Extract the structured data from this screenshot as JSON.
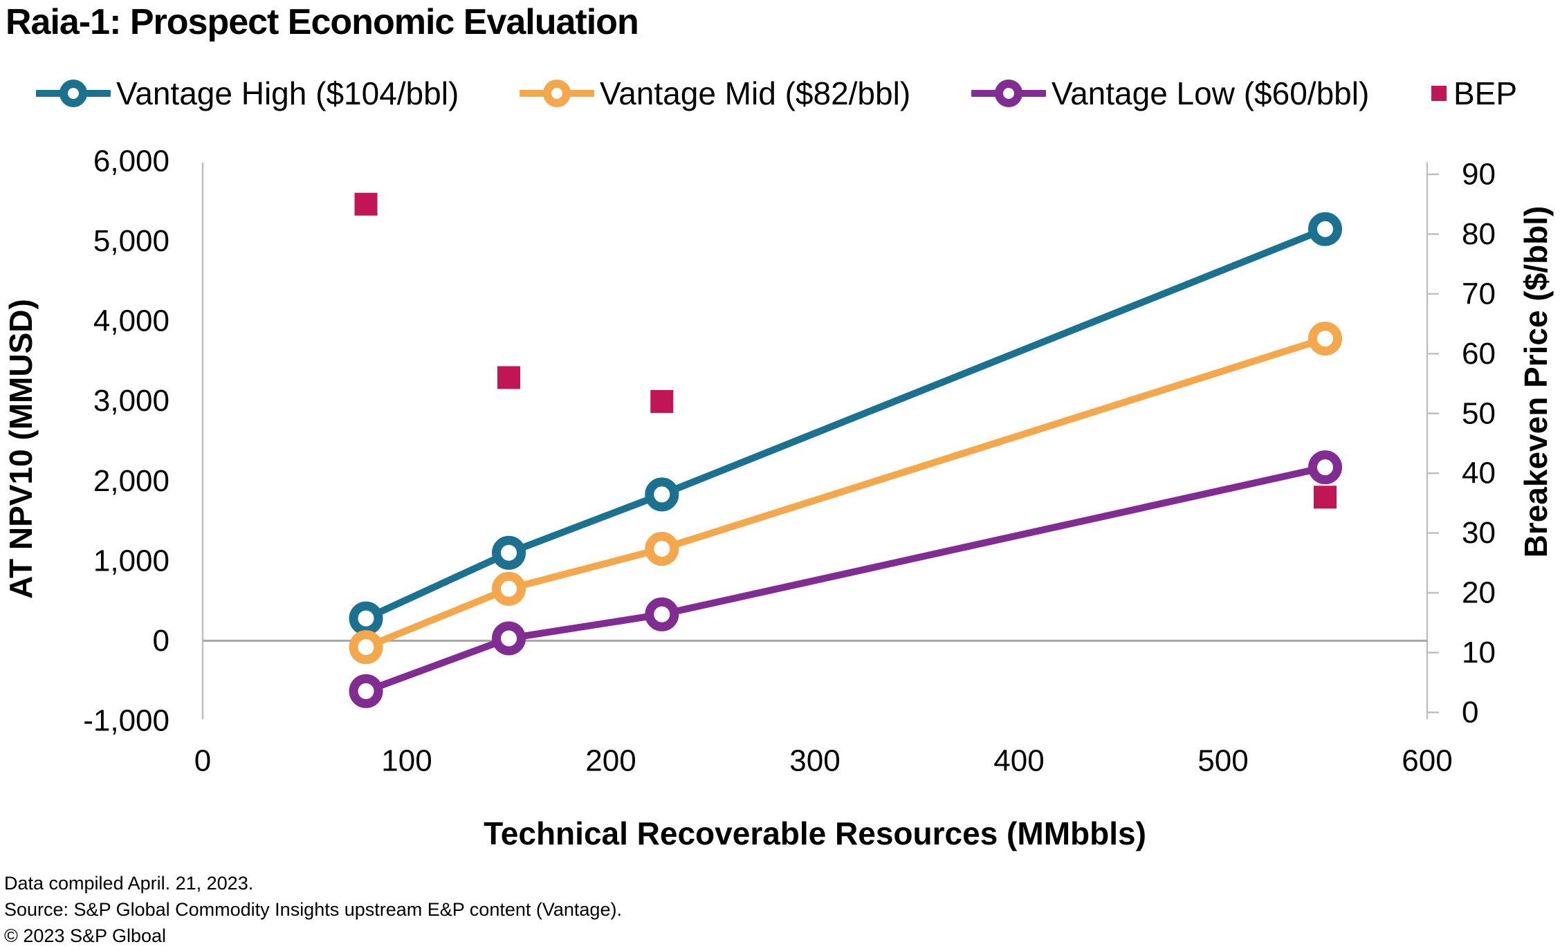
{
  "title": "Raia-1: Prospect Economic Evaluation",
  "footer": {
    "line1": "Data compiled April. 21, 2023.",
    "line2": "Source: S&P Global Commodity Insights upstream E&P content (Vantage).",
    "line3": "© 2023 S&P Glboal"
  },
  "chart_data": {
    "type": "line",
    "title": "Raia-1: Prospect Economic Evaluation",
    "xlabel": "Technical Recoverable Resources (MMbbls)",
    "ylabel_left": "AT NPV10 (MMUSD)",
    "ylabel_right": "Breakeven Price ($/bbl)",
    "legend_position": "top",
    "grid": false,
    "x": [
      80,
      150,
      225,
      550
    ],
    "series": [
      {
        "name": "Vantage High ($104/bbl)",
        "axis": "left",
        "marker": "ring",
        "color": "#1A7290",
        "values": [
          280,
          1100,
          1830,
          5150
        ]
      },
      {
        "name": "Vantage Mid ($82/bbl)",
        "axis": "left",
        "marker": "ring",
        "color": "#F4A74B",
        "values": [
          -80,
          650,
          1150,
          3780
        ]
      },
      {
        "name": "Vantage Low ($60/bbl)",
        "axis": "left",
        "marker": "ring",
        "color": "#802C93",
        "values": [
          -630,
          30,
          330,
          2170
        ]
      },
      {
        "name": "BEP",
        "axis": "right",
        "marker": "square",
        "type": "scatter",
        "color": "#C21556",
        "values": [
          85,
          56,
          52,
          36
        ]
      }
    ],
    "axes": {
      "x": {
        "min": 0,
        "max": 600,
        "tick_values": [
          0,
          100,
          200,
          300,
          400,
          500,
          600
        ],
        "tick_labels": [
          "0",
          "100",
          "200",
          "300",
          "400",
          "500",
          "600"
        ]
      },
      "left": {
        "min": -1000,
        "max": 6000,
        "tick_values": [
          -1000,
          0,
          1000,
          2000,
          3000,
          4000,
          5000,
          6000
        ],
        "tick_labels": [
          "-1,000",
          "0",
          "1,000",
          "2,000",
          "3,000",
          "4,000",
          "5,000",
          "6,000"
        ]
      },
      "right": {
        "min": 0,
        "max": 90,
        "tick_values": [
          0,
          10,
          20,
          30,
          40,
          50,
          60,
          70,
          80,
          90
        ],
        "tick_labels": [
          "0",
          "10",
          "20",
          "30",
          "40",
          "50",
          "60",
          "70",
          "80",
          "90"
        ]
      }
    },
    "style_colors": {
      "axis_line": "#BFBFBF",
      "zero_line": "#A6A6A6",
      "text": "#000000"
    }
  }
}
